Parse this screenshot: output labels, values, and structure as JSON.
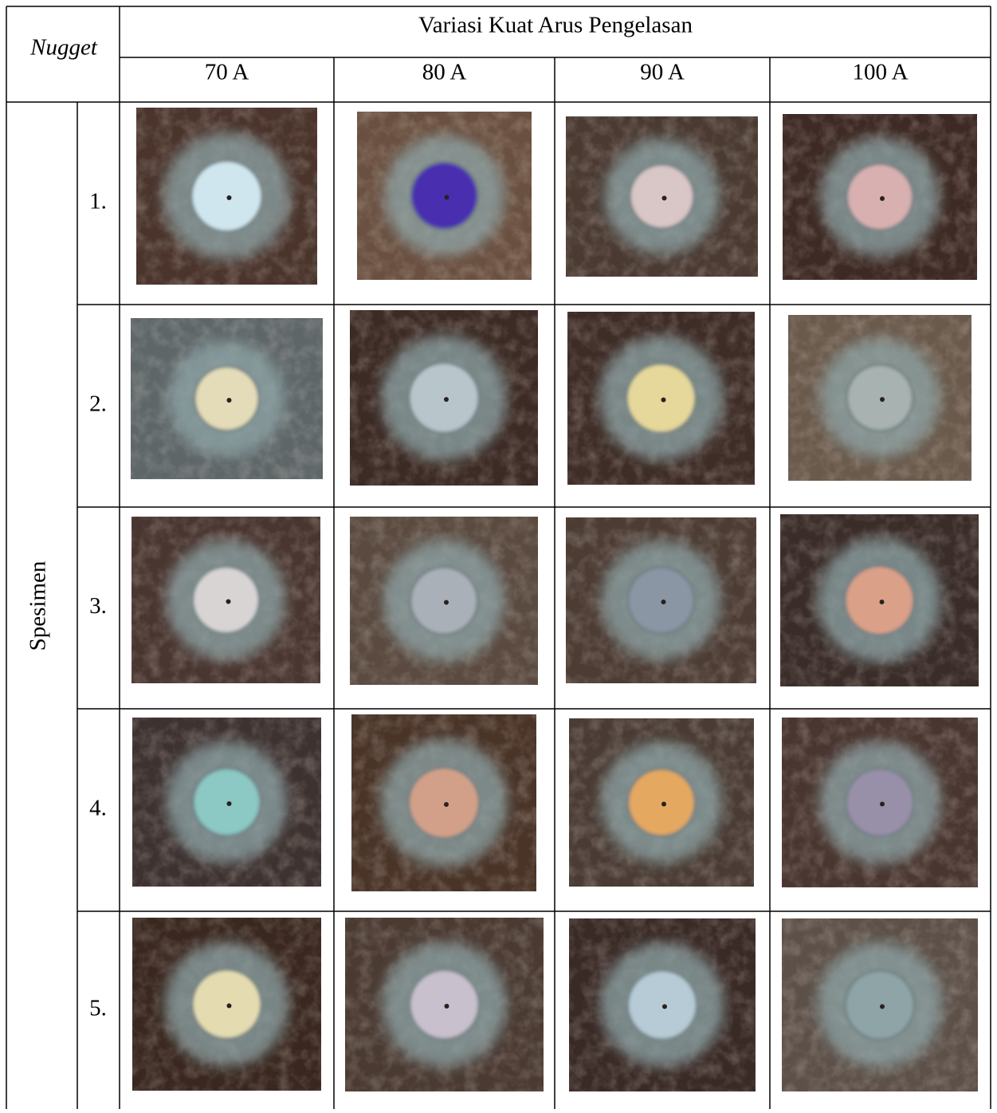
{
  "header": {
    "corner": "Nugget",
    "group": "Variasi Kuat Arus Pengelasan",
    "columns": [
      "70 A",
      "80 A",
      "90 A",
      "100 A"
    ]
  },
  "row_group": "Spesimen",
  "rows": [
    "1.",
    "2.",
    "3.",
    "4.",
    "5."
  ]
}
